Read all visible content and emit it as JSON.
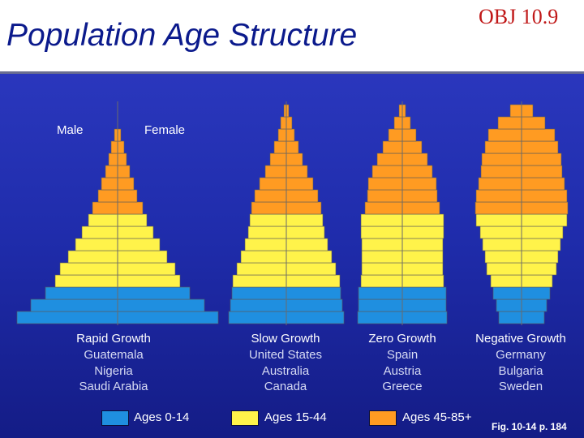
{
  "slide": {
    "title": "Population Age Structure",
    "obj_tag": "OBJ 10.9",
    "figure_ref": "Fig. 10-14 p. 184"
  },
  "colors": {
    "ages_0_14": "#1f8fe0",
    "ages_15_44": "#fff34a",
    "ages_45_85": "#ff9b22",
    "bar_outline": "#5a5a5a",
    "panel_top": "#2a37bd",
    "panel_bottom": "#141c86"
  },
  "chart_data": {
    "type": "bar",
    "orientation": "horizontal-pyramid",
    "axis_labels": {
      "male": "Male",
      "female": "Female"
    },
    "legend": [
      {
        "name": "Ages 0-14",
        "color": "#1f8fe0"
      },
      {
        "name": "Ages 15-44",
        "color": "#fff34a"
      },
      {
        "name": "Ages 45-85+",
        "color": "#ff9b22"
      }
    ],
    "age_bands": 18,
    "note": "",
    "pyramids": [
      {
        "title": "Rapid Growth",
        "countries": [
          "Guatemala",
          "Nigeria",
          "Saudi Arabia"
        ],
        "center": 145,
        "bottom": 399,
        "height": 15,
        "half_widths": [
          124,
          107,
          89,
          77,
          71,
          61,
          52,
          44,
          36,
          31,
          24,
          20,
          15,
          11,
          8,
          4,
          0,
          0
        ],
        "groups": [
          0,
          0,
          0,
          1,
          1,
          1,
          1,
          1,
          1,
          2,
          2,
          2,
          2,
          2,
          2,
          2,
          2,
          2
        ]
      },
      {
        "title": "Slow Growth",
        "countries": [
          "United States",
          "Australia",
          "Canada"
        ],
        "center": 353,
        "bottom": 399,
        "height": 15,
        "half_widths": [
          71,
          69,
          67,
          66,
          61,
          56,
          51,
          47,
          45,
          43,
          39,
          33,
          26,
          20,
          15,
          10,
          7,
          3
        ],
        "groups": [
          0,
          0,
          0,
          1,
          1,
          1,
          1,
          1,
          1,
          2,
          2,
          2,
          2,
          2,
          2,
          2,
          2,
          2
        ]
      },
      {
        "title": "Zero Growth",
        "countries": [
          "Spain",
          "Austria",
          "Greece"
        ],
        "center": 496,
        "bottom": 399,
        "height": 15,
        "half_widths": [
          55,
          54,
          54,
          51,
          50,
          50,
          50,
          51,
          51,
          46,
          43,
          42,
          37,
          31,
          24,
          17,
          10,
          4
        ],
        "groups": [
          0,
          0,
          0,
          1,
          1,
          1,
          1,
          1,
          1,
          2,
          2,
          2,
          2,
          2,
          2,
          2,
          2,
          2
        ]
      },
      {
        "title": "Negative Growth",
        "countries": [
          "Germany",
          "Bulgaria",
          "Sweden"
        ],
        "center": 643,
        "bottom": 399,
        "height": 15,
        "half_widths": [
          28,
          31,
          35,
          38,
          43,
          45,
          48,
          51,
          56,
          57,
          56,
          53,
          50,
          49,
          45,
          41,
          29,
          14
        ],
        "groups": [
          0,
          0,
          0,
          1,
          1,
          1,
          1,
          1,
          1,
          2,
          2,
          2,
          2,
          2,
          2,
          2,
          2,
          2
        ]
      }
    ]
  }
}
